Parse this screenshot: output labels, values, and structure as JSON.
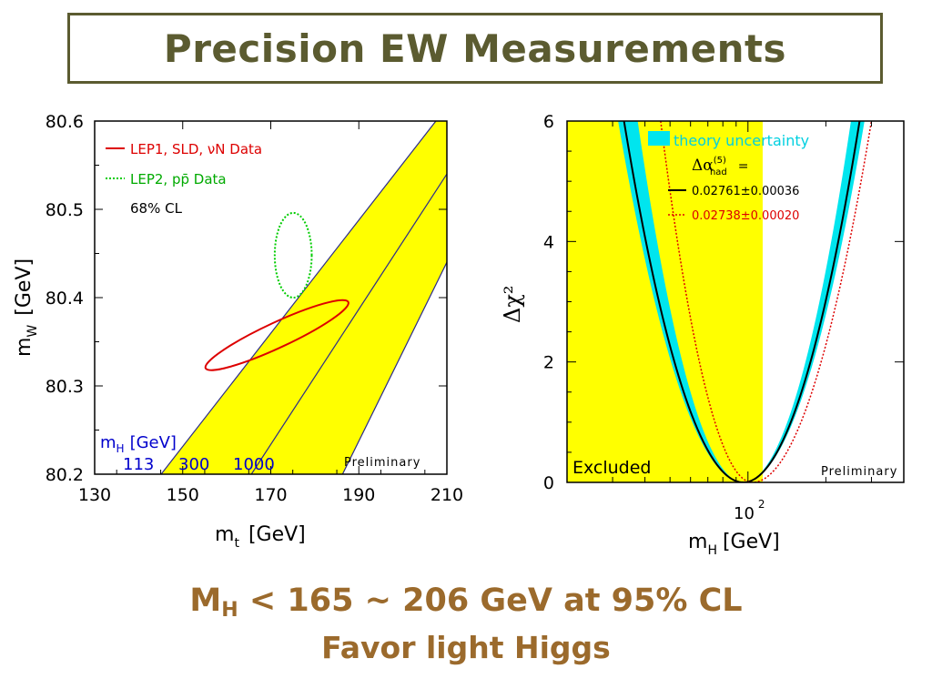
{
  "title": "Precision EW Measurements",
  "colors": {
    "title_frame": "#5b5b30",
    "conclusion_text": "#9b6a2c",
    "yellow_band": "#ffff00",
    "band_edge": "#2a2a8c",
    "lep1": "#dd0000",
    "lep2": "#00cc00",
    "mh_labels": "#0000cc",
    "theory_band": "#00e5ee",
    "alt_alpha": "#dd0000"
  },
  "conclusion": {
    "line1_prefix": "M",
    "line1_sub": "H",
    "line1_rest": " < 165 ~ 206 GeV at 95% CL",
    "line2": "Favor light Higgs"
  },
  "chart_data": [
    {
      "type": "contour",
      "xlabel_main": "m",
      "xlabel_sub": "t",
      "xlabel_unit": "[GeV]",
      "ylabel_main": "m",
      "ylabel_sub": "W",
      "ylabel_unit": "[GeV]",
      "xlim": [
        130,
        210
      ],
      "ylim": [
        80.2,
        80.6
      ],
      "xticks": [
        "130",
        "150",
        "170",
        "190",
        "210"
      ],
      "yticks": [
        "80.2",
        "80.3",
        "80.4",
        "80.5",
        "80.6"
      ],
      "legend": [
        {
          "text": "LEP1, SLD, νN Data",
          "style": "solid",
          "color": "#dd0000"
        },
        {
          "text": "LEP2, pp̄ Data",
          "style": "dotted",
          "color": "#00cc00"
        },
        {
          "text": "68% CL",
          "style": "none",
          "color": "#000000"
        }
      ],
      "ellipses": [
        {
          "name": "LEP1, SLD, νN Data",
          "center": [
            171.4,
            80.3575
          ],
          "rx_pts": [
            [
              187.6,
              80.395
            ],
            [
              155.2,
              80.32
            ]
          ],
          "ry_pts": [
            [
              170.0,
              80.37
            ],
            [
              172.8,
              80.345
            ]
          ],
          "style": "solid"
        },
        {
          "name": "LEP2, pp̄ Data",
          "center": [
            175.1,
            80.448
          ],
          "x_range": [
            170.9,
            179.3
          ],
          "y_range": [
            80.4,
            80.496
          ],
          "style": "dotted"
        }
      ],
      "band": {
        "label_main": "m",
        "label_sub": "H",
        "label_unit": "[GeV]",
        "lines": [
          {
            "mh": "113",
            "x_at_bottom": 145.1,
            "x_at_top": 207.5
          },
          {
            "mh": "300",
            "x_at_bottom": 165.6,
            "x_at_top": 210.0,
            "y_at_right": 80.54
          },
          {
            "mh": "1000",
            "x_at_bottom": 186.3,
            "x_at_top": 210.0,
            "y_at_right": 80.44
          }
        ]
      },
      "annotation": "Preliminary"
    },
    {
      "type": "line",
      "xlabel_main": "m",
      "xlabel_sub": "H",
      "xlabel_unit": "[GeV]",
      "ylabel": "Δχ²",
      "xscale": "log",
      "xlim": [
        20,
        400
      ],
      "ylim": [
        0,
        6
      ],
      "xtick_label_base": "10",
      "xtick_label_exp": "2",
      "yticks": [
        "0",
        "2",
        "4",
        "6"
      ],
      "excluded_label": "Excluded",
      "excluded_below": 114,
      "legend_title_main": "Δα",
      "legend_title_sub": "had",
      "legend_title_sup": "(5)",
      "legend_title_eq": "=",
      "theory_label": "theory uncertainty",
      "series": [
        {
          "name": "0.02761±0.00036",
          "style": "solid",
          "color": "#000000",
          "min_x": 96,
          "left_x_at_6": 33.2,
          "right_x_at_6": 270
        },
        {
          "name": "0.02738±0.00020",
          "style": "dotted",
          "color": "#dd0000",
          "min_x": 104,
          "left_x_at_6": 46,
          "right_x_at_6": 300
        }
      ],
      "theory_band": {
        "left_outer_x_at_6": 31.5,
        "left_inner_x_at_6": 37.5,
        "right_inner_x_at_6": 250,
        "right_outer_x_at_6": 282
      },
      "annotation": "Preliminary"
    }
  ]
}
